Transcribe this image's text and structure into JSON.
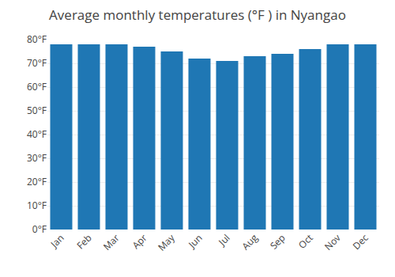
{
  "chart_data": {
    "type": "bar",
    "title": "Average monthly temperatures (°F ) in Nyangao",
    "categories": [
      "Jan",
      "Feb",
      "Mar",
      "Apr",
      "May",
      "Jun",
      "Jul",
      "Aug",
      "Sep",
      "Oct",
      "Nov",
      "Dec"
    ],
    "values": [
      78,
      78,
      78,
      77,
      75,
      72,
      71,
      73,
      74,
      76,
      78,
      78
    ],
    "ylim": [
      0,
      80
    ],
    "yticks": [
      {
        "value": 0,
        "label": "0°F"
      },
      {
        "value": 10,
        "label": "10°F"
      },
      {
        "value": 20,
        "label": "20°F"
      },
      {
        "value": 30,
        "label": "30°F"
      },
      {
        "value": 40,
        "label": "40°F"
      },
      {
        "value": 50,
        "label": "50°F"
      },
      {
        "value": 60,
        "label": "60°F"
      },
      {
        "value": 70,
        "label": "70°F"
      },
      {
        "value": 80,
        "label": "80°F"
      }
    ],
    "grid": true
  }
}
